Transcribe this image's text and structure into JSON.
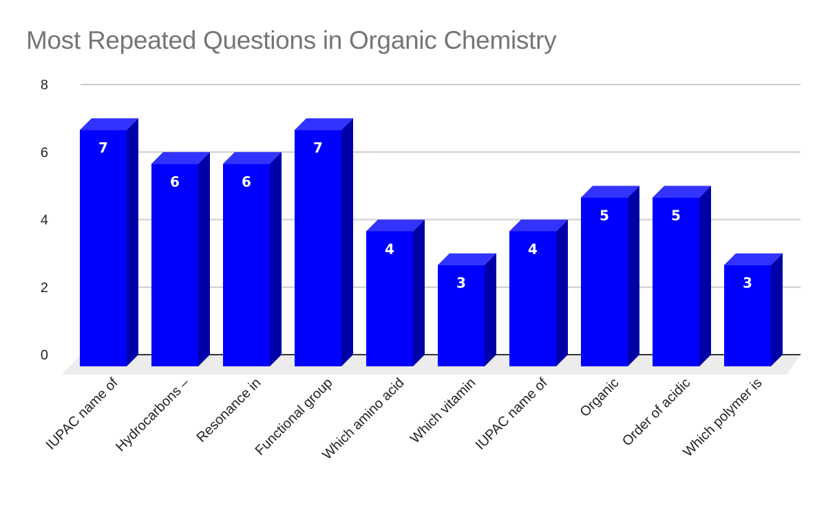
{
  "chart": {
    "title": "Most Repeated Questions in Organic Chemistry",
    "colors": {
      "bar_front": "#0000ff",
      "bar_top": "#3333ff",
      "bar_side": "#0000a8",
      "gridline": "#cccccc",
      "baseline": "#333333",
      "floor": "#ececec",
      "title": "#757575",
      "label": "#222222"
    }
  },
  "chart_data": {
    "type": "bar",
    "title": "Most Repeated Questions in Organic Chemistry",
    "xlabel": "",
    "ylabel": "",
    "categories": [
      "IUPAC name of",
      "Hydrocarbons –",
      "Resonance in",
      "Functional group",
      "Which amino acid",
      "Which vitamin",
      "IUPAC name of",
      "Organic",
      "Order of acidic",
      "Which polymer is"
    ],
    "values": [
      7,
      6,
      6,
      7,
      4,
      3,
      4,
      5,
      5,
      3
    ],
    "data_labels": [
      "7",
      "6",
      "6",
      "7",
      "4",
      "3",
      "4",
      "5",
      "5",
      "3"
    ],
    "yticks": [
      "0",
      "2",
      "4",
      "6",
      "8"
    ],
    "ylim": [
      0,
      8
    ],
    "grid": true,
    "legend": null,
    "style": "3d-column"
  }
}
